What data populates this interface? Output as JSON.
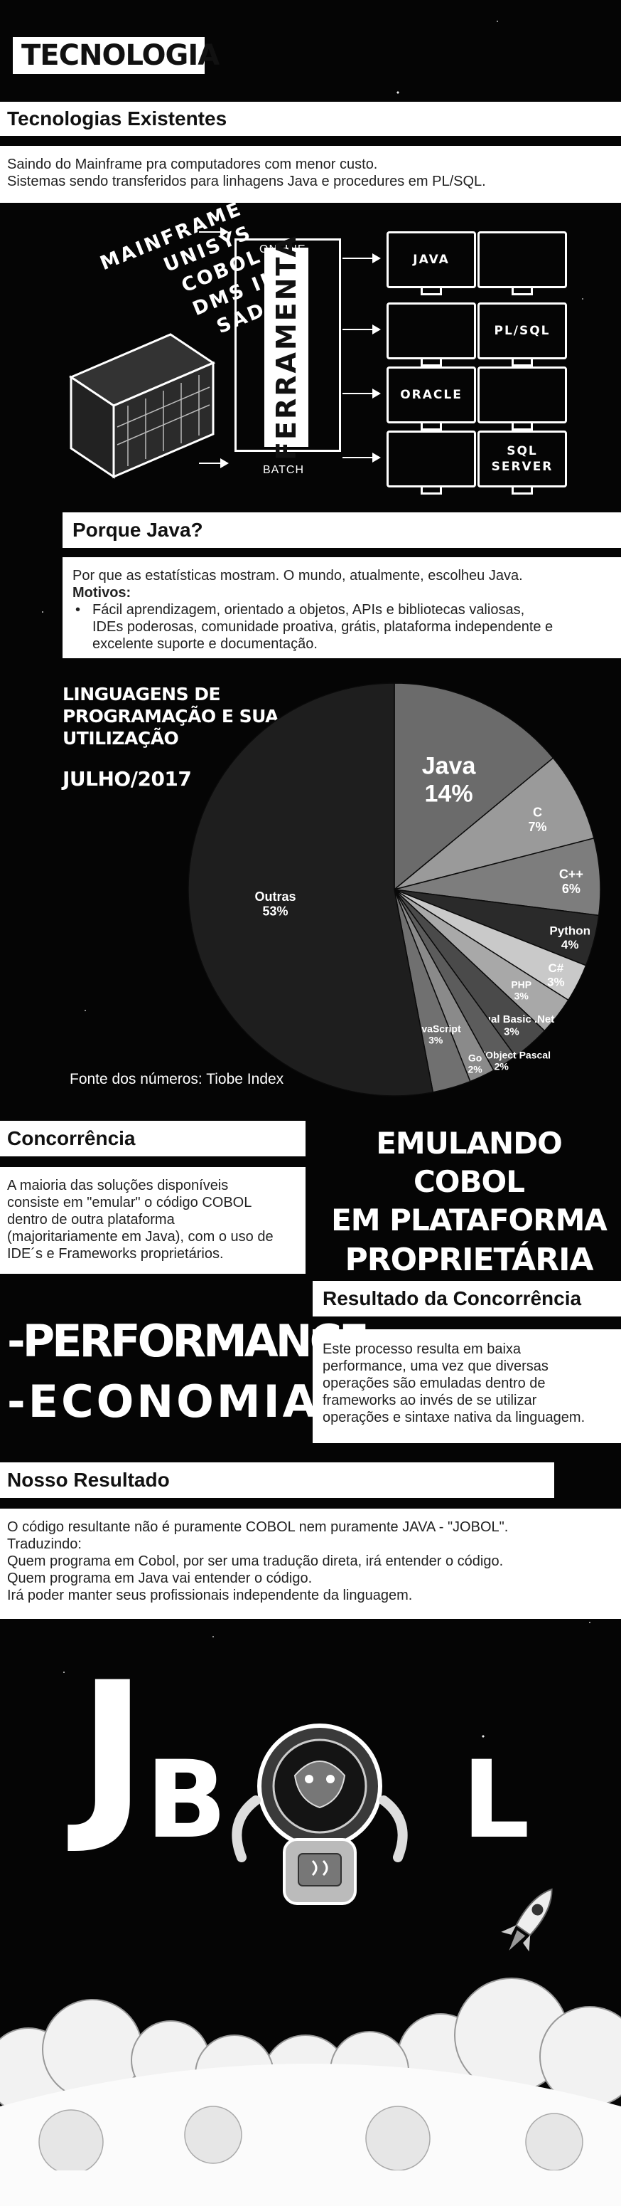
{
  "header": {
    "title": "TECNOLOGIA"
  },
  "section1": {
    "heading": "Tecnologias Existentes",
    "lines": [
      "Saindo do Mainframe pra computadores com menor custo.",
      "Sistemas sendo transferidos para linhagens Java e procedures em PL/SQL."
    ]
  },
  "diagram": {
    "mainframe_labels": [
      "MAINFRAME",
      "UNISYS",
      "COBOL",
      "DMS II",
      "SADS"
    ],
    "tool": "FERRAMENTA",
    "online": "ONLINE",
    "batch": "BATCH",
    "targets": [
      "JAVA",
      "",
      "",
      "PL/SQL",
      "ORACLE",
      "",
      "",
      "SQL SERVER"
    ]
  },
  "section2": {
    "heading": "Porque Java?",
    "intro": "Por que as estatísticas mostram. O mundo, atualmente, escolheu Java.",
    "reasons_label": "Motivos:",
    "reason": "Fácil aprendizagem, orientado a objetos, APIs e bibliotecas valiosas, IDEs poderosas, comunidade proativa, grátis, plataforma independente e excelente suporte e documentação."
  },
  "chart_data": {
    "type": "pie",
    "title": "LINGUAGENS DE PROGRAMAÇÃO E SUA UTILIZAÇÃO",
    "subtitle": "JULHO/2017",
    "source": "Fonte dos números: Tiobe Index",
    "slices": [
      {
        "label": "Java",
        "value": 14,
        "text": "14%",
        "color": "#6b6b6b"
      },
      {
        "label": "C",
        "value": 7,
        "text": "7%",
        "color": "#9a9a9a"
      },
      {
        "label": "C++",
        "value": 6,
        "text": "6%",
        "color": "#7d7d7d"
      },
      {
        "label": "Python",
        "value": 4,
        "text": "4%",
        "color": "#2a2a2a"
      },
      {
        "label": "C#",
        "value": 3,
        "text": "3%",
        "color": "#c9c9c9"
      },
      {
        "label": "PHP",
        "value": 3,
        "text": "3%",
        "color": "#a8a8a8"
      },
      {
        "label": "Visual Basic .Net",
        "value": 3,
        "text": "3%",
        "color": "#4a4a4a"
      },
      {
        "label": "Delphi/Object Pascal",
        "value": 2,
        "text": "2%",
        "color": "#5c5c5c"
      },
      {
        "label": "Go",
        "value": 2,
        "text": "2%",
        "color": "#8a8a8a"
      },
      {
        "label": "JavaScript",
        "value": 3,
        "text": "3%",
        "color": "#707070"
      },
      {
        "label": "Outras",
        "value": 53,
        "text": "53%",
        "color": "#1e1e1e"
      }
    ]
  },
  "section3": {
    "heading": "Concorrência",
    "text": "A maioria das soluções disponíveis consiste em \"emular\" o código COBOL dentro de outra plataforma (majoritariamente em Java), com o uso de IDE´s e Frameworks proprietários.",
    "banner": [
      "EMULANDO COBOL",
      "EM PLATAFORMA",
      "PROPRIETÁRIA"
    ]
  },
  "section4": {
    "heading": "Resultado da Concorrência",
    "big": [
      "-PERFORMANCE",
      "-ECONOMIA"
    ],
    "text": "Este processo resulta em baixa performance, uma vez que diversas operações são emuladas dentro de frameworks ao invés de se utilizar operações e sintaxe nativa da linguagem."
  },
  "section5": {
    "heading": "Nosso Resultado",
    "lines": [
      "O código resultante não é puramente COBOL nem puramente JAVA - \"JOBOL\".",
      "Traduzindo:",
      "Quem programa em Cobol, por ser uma tradução direta, irá entender o código.",
      "Quem programa em Java vai entender o código.",
      "Irá poder manter seus profissionais independente da linguagem."
    ]
  },
  "logo": {
    "letters": [
      "J",
      "B",
      "L"
    ],
    "hidden_letters": "JOBOL"
  }
}
